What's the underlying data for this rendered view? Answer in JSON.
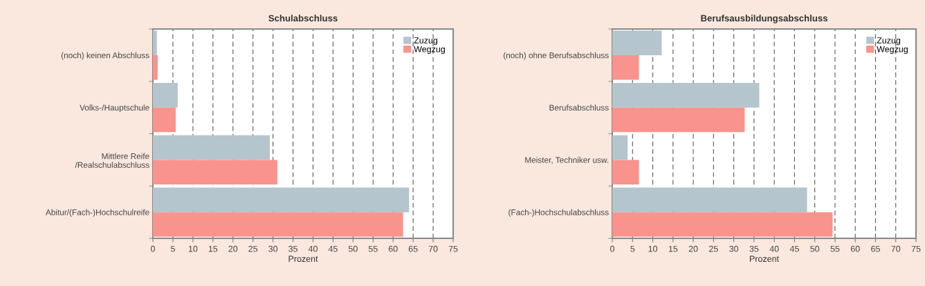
{
  "chart_data": [
    {
      "type": "bar",
      "orientation": "horizontal",
      "title": "Schulabschluss",
      "xlabel": "Prozent",
      "categories": [
        "(noch) keinen Abschluss",
        "Volks-/Hauptschule",
        "Mittlere Reife\n/Realschulabschluss",
        "Abitur/(Fach-)Hochschulreife"
      ],
      "series": [
        {
          "name": "Zuzug",
          "color": "#b5c5cd",
          "values": [
            1.0,
            6.2,
            29.2,
            64.0
          ]
        },
        {
          "name": "Wegzug",
          "color": "#f8948d",
          "values": [
            1.2,
            5.7,
            31.1,
            62.5
          ]
        }
      ],
      "xlim": [
        0,
        75
      ],
      "xticks": [
        0,
        5,
        10,
        15,
        20,
        25,
        30,
        35,
        40,
        45,
        50,
        55,
        60,
        65,
        70,
        75
      ],
      "grid": "x",
      "line_style": "dashed",
      "legend": "top right"
    },
    {
      "type": "bar",
      "orientation": "horizontal",
      "title": "Berufsausbildungsabschluss",
      "xlabel": "Prozent",
      "categories": [
        "(noch) ohne Berufsabschluss",
        "Berufsabschluss",
        "Meister, Techniker usw.",
        "(Fach-)Hochschulabschluss"
      ],
      "series": [
        {
          "name": "Zuzug",
          "color": "#b5c5cd",
          "values": [
            12.2,
            36.3,
            3.8,
            48.1
          ]
        },
        {
          "name": "Wegzug",
          "color": "#f8948d",
          "values": [
            6.6,
            32.7,
            6.6,
            54.4
          ]
        }
      ],
      "xlim": [
        0,
        75
      ],
      "xticks": [
        0,
        5,
        10,
        15,
        20,
        25,
        30,
        35,
        40,
        45,
        50,
        55,
        60,
        65,
        70,
        75
      ],
      "grid": "x",
      "line_style": "dashed",
      "legend": "top right"
    }
  ]
}
